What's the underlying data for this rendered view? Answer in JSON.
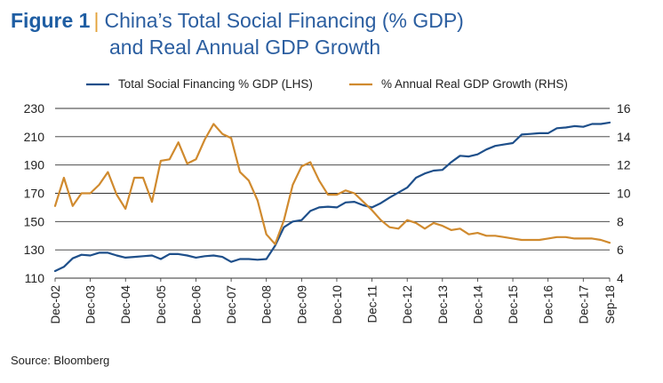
{
  "header": {
    "figure_label": "Figure 1",
    "title_line1": "China’s Total Social Financing (% GDP)",
    "title_line2": "and Real Annual GDP Growth"
  },
  "source": "Source: Bloomberg",
  "chart_data": {
    "type": "line",
    "legend_position": "top",
    "grid": true,
    "x_start": [
      2002,
      12
    ],
    "x_end": [
      2018,
      9
    ],
    "x_tick_labels": [
      "Dec-02",
      "Dec-03",
      "Dec-04",
      "Dec-05",
      "Dec-06",
      "Dec-07",
      "Dec-08",
      "Dec-09",
      "Dec-10",
      "Dec-11",
      "Dec-12",
      "Dec-13",
      "Dec-14",
      "Dec-15",
      "Dec-16",
      "Dec-17",
      "Sep-18"
    ],
    "y_left": {
      "ticks": [
        110,
        130,
        150,
        170,
        190,
        210,
        230
      ],
      "range": [
        110,
        230
      ]
    },
    "y_right": {
      "ticks": [
        4,
        6,
        8,
        10,
        12,
        14,
        16
      ],
      "range": [
        4,
        16
      ]
    },
    "series": [
      {
        "name": "Total Social Financing % GDP (LHS)",
        "axis": "left",
        "color": "#1e4f8a",
        "points": [
          [
            "Dec-02",
            115
          ],
          [
            "Mar-03",
            118
          ],
          [
            "Jun-03",
            124
          ],
          [
            "Sep-03",
            126.5
          ],
          [
            "Dec-03",
            126
          ],
          [
            "Mar-04",
            128
          ],
          [
            "Jun-04",
            128
          ],
          [
            "Sep-04",
            126
          ],
          [
            "Dec-04",
            124.5
          ],
          [
            "Mar-05",
            125
          ],
          [
            "Jun-05",
            125.5
          ],
          [
            "Sep-05",
            126
          ],
          [
            "Dec-05",
            123.5
          ],
          [
            "Mar-06",
            127
          ],
          [
            "Jun-06",
            127
          ],
          [
            "Sep-06",
            126
          ],
          [
            "Dec-06",
            124.5
          ],
          [
            "Mar-07",
            125.5
          ],
          [
            "Jun-07",
            126
          ],
          [
            "Sep-07",
            125
          ],
          [
            "Dec-07",
            121.5
          ],
          [
            "Mar-08",
            123.5
          ],
          [
            "Jun-08",
            123.5
          ],
          [
            "Sep-08",
            123
          ],
          [
            "Dec-08",
            123.5
          ],
          [
            "Mar-09",
            133
          ],
          [
            "Jun-09",
            146
          ],
          [
            "Sep-09",
            150
          ],
          [
            "Dec-09",
            151
          ],
          [
            "Mar-10",
            157.5
          ],
          [
            "Jun-10",
            160
          ],
          [
            "Sep-10",
            160.5
          ],
          [
            "Dec-10",
            160
          ],
          [
            "Mar-11",
            163.5
          ],
          [
            "Jun-11",
            164
          ],
          [
            "Sep-11",
            161.5
          ],
          [
            "Dec-11",
            160
          ],
          [
            "Mar-12",
            163
          ],
          [
            "Jun-12",
            167
          ],
          [
            "Sep-12",
            170.5
          ],
          [
            "Dec-12",
            174
          ],
          [
            "Mar-13",
            181
          ],
          [
            "Jun-13",
            184
          ],
          [
            "Sep-13",
            186
          ],
          [
            "Dec-13",
            186.5
          ],
          [
            "Mar-14",
            192
          ],
          [
            "Jun-14",
            196.5
          ],
          [
            "Sep-14",
            196
          ],
          [
            "Dec-14",
            197.5
          ],
          [
            "Mar-15",
            201
          ],
          [
            "Jun-15",
            203.5
          ],
          [
            "Sep-15",
            204.5
          ],
          [
            "Dec-15",
            205.5
          ],
          [
            "Mar-16",
            211.5
          ],
          [
            "Jun-16",
            212
          ],
          [
            "Sep-16",
            212.5
          ],
          [
            "Dec-16",
            212.5
          ],
          [
            "Mar-17",
            216
          ],
          [
            "Jun-17",
            216.5
          ],
          [
            "Sep-17",
            217.5
          ],
          [
            "Dec-17",
            217
          ],
          [
            "Mar-18",
            219
          ],
          [
            "Jun-18",
            219
          ],
          [
            "Sep-18",
            220
          ]
        ]
      },
      {
        "name": "% Annual Real GDP Growth (RHS)",
        "axis": "right",
        "color": "#d08a2e",
        "points": [
          [
            "Dec-02",
            9.1
          ],
          [
            "Mar-03",
            11.1
          ],
          [
            "Jun-03",
            9.1
          ],
          [
            "Sep-03",
            10
          ],
          [
            "Dec-03",
            10
          ],
          [
            "Mar-04",
            10.6
          ],
          [
            "Jun-04",
            11.5
          ],
          [
            "Sep-04",
            9.9
          ],
          [
            "Dec-04",
            8.9
          ],
          [
            "Mar-05",
            11.1
          ],
          [
            "Jun-05",
            11.1
          ],
          [
            "Sep-05",
            9.4
          ],
          [
            "Dec-05",
            12.3
          ],
          [
            "Mar-06",
            12.4
          ],
          [
            "Jun-06",
            13.6
          ],
          [
            "Sep-06",
            12.1
          ],
          [
            "Dec-06",
            12.4
          ],
          [
            "Mar-07",
            13.8
          ],
          [
            "Jun-07",
            14.9
          ],
          [
            "Sep-07",
            14.2
          ],
          [
            "Dec-07",
            13.9
          ],
          [
            "Mar-08",
            11.5
          ],
          [
            "Jun-08",
            10.9
          ],
          [
            "Sep-08",
            9.5
          ],
          [
            "Dec-08",
            7.1
          ],
          [
            "Mar-09",
            6.4
          ],
          [
            "Jun-09",
            8.1
          ],
          [
            "Sep-09",
            10.6
          ],
          [
            "Dec-09",
            11.9
          ],
          [
            "Mar-10",
            12.2
          ],
          [
            "Jun-10",
            10.9
          ],
          [
            "Sep-10",
            9.9
          ],
          [
            "Dec-10",
            9.9
          ],
          [
            "Mar-11",
            10.2
          ],
          [
            "Jun-11",
            10
          ],
          [
            "Sep-11",
            9.4
          ],
          [
            "Dec-11",
            8.8
          ],
          [
            "Mar-12",
            8.1
          ],
          [
            "Jun-12",
            7.6
          ],
          [
            "Sep-12",
            7.5
          ],
          [
            "Dec-12",
            8.1
          ],
          [
            "Mar-13",
            7.9
          ],
          [
            "Jun-13",
            7.5
          ],
          [
            "Sep-13",
            7.9
          ],
          [
            "Dec-13",
            7.7
          ],
          [
            "Mar-14",
            7.4
          ],
          [
            "Jun-14",
            7.5
          ],
          [
            "Sep-14",
            7.1
          ],
          [
            "Dec-14",
            7.2
          ],
          [
            "Mar-15",
            7
          ],
          [
            "Jun-15",
            7
          ],
          [
            "Sep-15",
            6.9
          ],
          [
            "Dec-15",
            6.8
          ],
          [
            "Mar-16",
            6.7
          ],
          [
            "Jun-16",
            6.7
          ],
          [
            "Sep-16",
            6.7
          ],
          [
            "Dec-16",
            6.8
          ],
          [
            "Mar-17",
            6.9
          ],
          [
            "Jun-17",
            6.9
          ],
          [
            "Sep-17",
            6.8
          ],
          [
            "Dec-17",
            6.8
          ],
          [
            "Mar-18",
            6.8
          ],
          [
            "Jun-18",
            6.7
          ],
          [
            "Sep-18",
            6.5
          ]
        ]
      }
    ]
  }
}
